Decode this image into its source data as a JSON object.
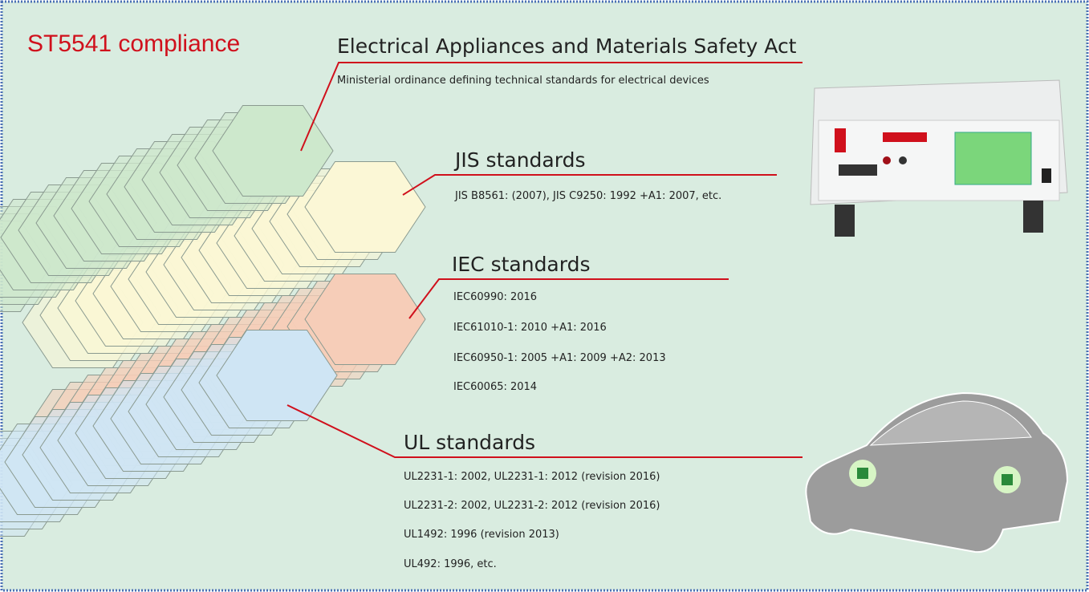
{
  "title": "ST5541 compliance",
  "sections": [
    {
      "heading": "Electrical Appliances and Materials Safety Act",
      "lines": [
        "Ministerial ordinance defining technical standards for electrical devices"
      ]
    },
    {
      "heading": "JIS standards",
      "lines": [
        "JIS B8561: (2007), JIS C9250: 1992 +A1: 2007, etc."
      ]
    },
    {
      "heading": "IEC standards",
      "lines": [
        "IEC60990: 2016",
        "IEC61010-1: 2010 +A1: 2016",
        "IEC60950-1: 2005 +A1: 2009 +A2: 2013",
        "IEC60065: 2014"
      ]
    },
    {
      "heading": "UL standards",
      "lines": [
        "UL2231-1: 2002, UL2231-1: 2012 (revision 2016)",
        "UL2231-2: 2002, UL2231-2: 2012 (revision 2016)",
        "UL1492: 1996 (revision 2013)",
        "UL492: 1996, etc."
      ]
    }
  ]
}
